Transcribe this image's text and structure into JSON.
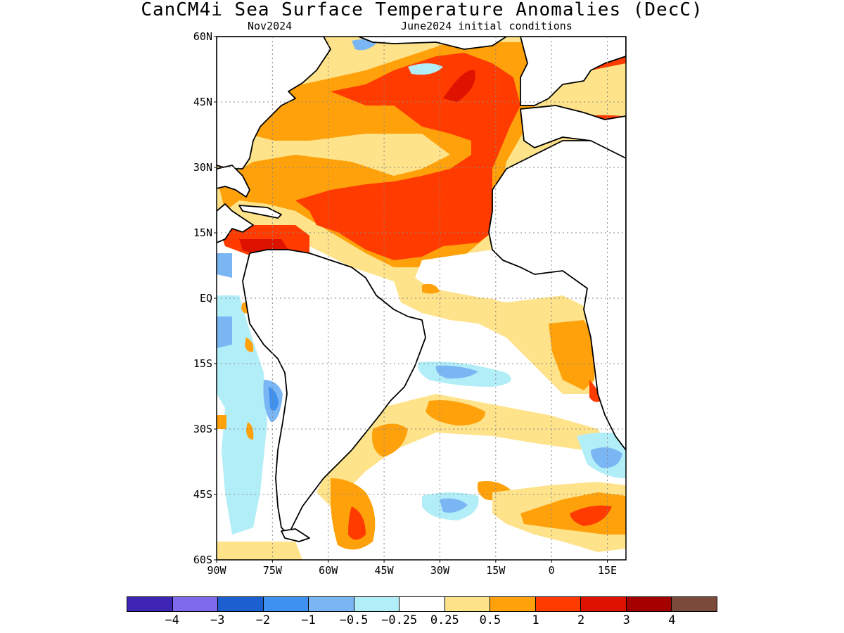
{
  "title": "CanCM4i Sea Surface Temperature Anomalies (DecC)",
  "subtitle_left": "Nov2024",
  "subtitle_right": "June2024 initial conditions",
  "lat_labels": [
    "60N",
    "45N",
    "30N",
    "15N",
    "EQ",
    "15S",
    "30S",
    "45S",
    "60S"
  ],
  "lon_labels": [
    "90W",
    "75W",
    "60W",
    "45W",
    "30W",
    "15W",
    "0",
    "15E"
  ],
  "colorbar": {
    "colors": [
      "#3f25b4",
      "#7f6aeb",
      "#1c5fd0",
      "#3f91ef",
      "#7ab6f4",
      "#b2eef8",
      "#ffffff",
      "#fee38a",
      "#ffa10b",
      "#ff3b00",
      "#dd1300",
      "#a50000",
      "#7a4b3a"
    ],
    "labels": [
      "−4",
      "−3",
      "−2",
      "−1",
      "−0.5",
      "−0.25",
      "0.25",
      "0.5",
      "1",
      "2",
      "3",
      "4"
    ]
  },
  "map": {
    "region": "Atlantic Ocean",
    "lon_range": [
      -90,
      20
    ],
    "lat_range": [
      -60,
      60
    ]
  }
}
